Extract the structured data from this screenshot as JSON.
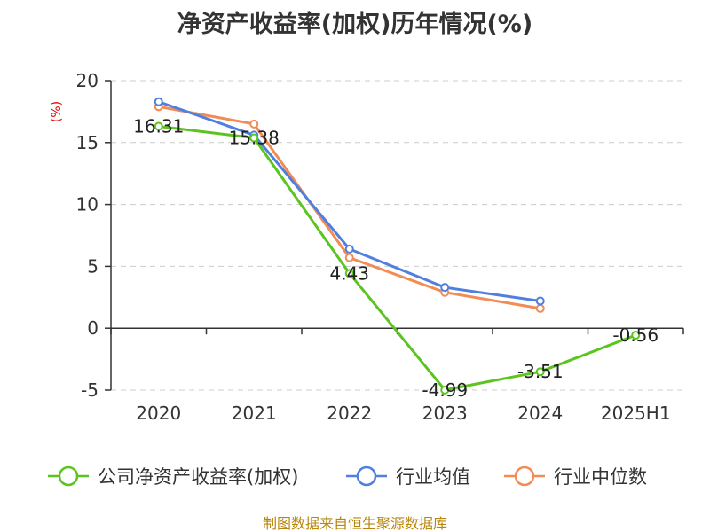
{
  "title": "净资产收益率(加权)历年情况(%)",
  "source_text": "制图数据来自恒生聚源数据库",
  "colors": {
    "company": "#5cc41e",
    "industry_avg": "#4f7fdf",
    "industry_median": "#f38b55",
    "grid": "#cccccc",
    "axis": "#333333",
    "ylabel": "#e60000",
    "source": "#b8860b"
  },
  "chart_data": {
    "type": "line",
    "title": "净资产收益率(加权)历年情况(%)",
    "ylabel": "(%)",
    "xlabel": "",
    "categories": [
      "2020",
      "2021",
      "2022",
      "2023",
      "2024",
      "2025H1"
    ],
    "ylim": [
      -5,
      20
    ],
    "yticks": [
      20,
      15,
      10,
      5,
      0,
      -5
    ],
    "grid": true,
    "legend_position": "bottom",
    "series": [
      {
        "name": "公司净资产收益率(加权)",
        "color_key": "company",
        "values": [
          16.31,
          15.38,
          4.43,
          -4.99,
          -3.51,
          -0.56
        ],
        "labels": [
          "16.31",
          "15.38",
          "4.43",
          "-4.99",
          "-3.51",
          "-0.56"
        ]
      },
      {
        "name": "行业均值",
        "color_key": "industry_avg",
        "values": [
          18.3,
          15.6,
          6.4,
          3.3,
          2.2,
          null
        ]
      },
      {
        "name": "行业中位数",
        "color_key": "industry_median",
        "values": [
          17.9,
          16.5,
          5.7,
          2.9,
          1.6,
          null
        ]
      }
    ]
  }
}
